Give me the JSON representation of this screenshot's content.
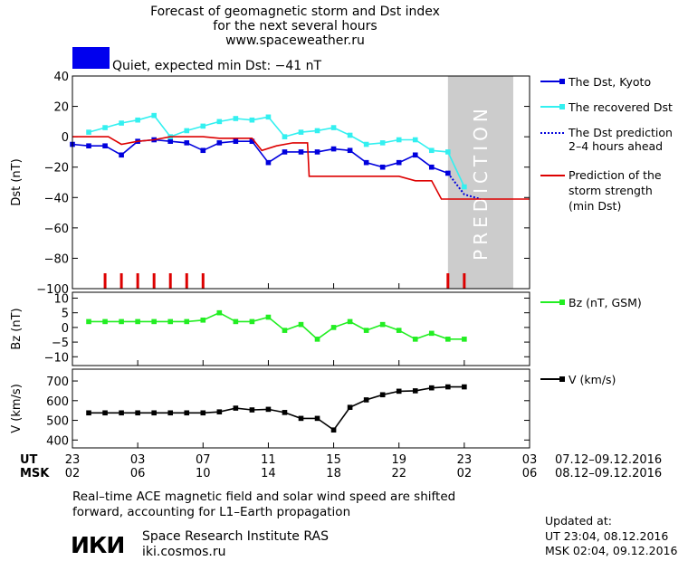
{
  "header": {
    "title_line1": "Forecast of geomagnetic storm and Dst index",
    "title_line2": "for the next several hours",
    "website": "www.spaceweather.ru",
    "status_label": "Quiet, expected min Dst: −41 nT",
    "status_color": "#0000ee"
  },
  "prediction_label": "PREDICTION",
  "colors": {
    "dst_kyoto": "#0000dd",
    "dst_recovered": "#33f0f0",
    "dst_prediction": "#0000dd",
    "min_dst": "#dd0000",
    "bz": "#22ee22",
    "v": "#000000",
    "prediction_zone": "#cccccc",
    "storm_marks": "#dd0000"
  },
  "chart_data": [
    {
      "type": "line",
      "name": "dst",
      "ylabel": "Dst (nT)",
      "ylim": [
        -100,
        40
      ],
      "yticks": [
        40,
        20,
        0,
        -20,
        -40,
        -60,
        -80,
        -100
      ],
      "xlim": [
        0,
        28
      ],
      "prediction_zone": [
        23,
        27
      ],
      "legend": {
        "dst_kyoto": "The Dst, Kyoto",
        "dst_recovered": "The recovered Dst",
        "dst_prediction_1": "The Dst prediction",
        "dst_prediction_2": "2–4 hours ahead",
        "min_dst_1": "Prediction of the",
        "min_dst_2": "storm strength",
        "min_dst_3": "(min Dst)"
      },
      "series": [
        {
          "key": "dst_kyoto",
          "x": [
            0,
            1,
            2,
            3,
            4,
            5,
            6,
            7,
            8,
            9,
            10,
            11,
            12,
            13,
            14,
            15,
            16,
            17,
            18,
            19,
            20,
            21,
            22,
            23
          ],
          "y": [
            -5,
            -6,
            -6,
            -12,
            -3,
            -2,
            -3,
            -4,
            -9,
            -4,
            -3,
            -3,
            -17,
            -10,
            -10,
            -10,
            -8,
            -9,
            -17,
            -20,
            -17,
            -12,
            -20,
            -24
          ]
        },
        {
          "key": "dst_recovered",
          "x": [
            1,
            2,
            3,
            4,
            5,
            6,
            7,
            8,
            9,
            10,
            11,
            12,
            13,
            14,
            15,
            16,
            17,
            18,
            19,
            20,
            21,
            22,
            23,
            24
          ],
          "y": [
            3,
            6,
            9,
            11,
            14,
            0,
            4,
            7,
            10,
            12,
            11,
            13,
            0,
            3,
            4,
            6,
            1,
            -5,
            -4,
            -2,
            -2,
            -9,
            -10,
            -33
          ]
        },
        {
          "key": "dst_prediction",
          "x": [
            23,
            24,
            25
          ],
          "y": [
            -24,
            -38,
            -41
          ]
        },
        {
          "key": "min_dst",
          "x": [
            0,
            2.2,
            3,
            4,
            5,
            6,
            7,
            8,
            9,
            10,
            11,
            11.6,
            12.5,
            13.5,
            14.4,
            14.5,
            20,
            21,
            22,
            22.6,
            28
          ],
          "y": [
            0,
            0,
            -5,
            -3,
            -2,
            0,
            0,
            0,
            -1,
            -1,
            -1,
            -9,
            -6,
            -4,
            -4,
            -26,
            -26,
            -29,
            -29,
            -41,
            -41
          ]
        }
      ],
      "storm_marks_x": [
        2,
        3,
        4,
        5,
        6,
        7,
        8,
        23,
        24
      ]
    },
    {
      "type": "line",
      "name": "bz",
      "ylabel": "Bz (nT)",
      "ylim": [
        -13,
        12
      ],
      "yticks": [
        10,
        5,
        0,
        -5,
        -10
      ],
      "xlim": [
        0,
        28
      ],
      "legend": {
        "bz": "Bz (nT, GSM)"
      },
      "series": [
        {
          "key": "bz",
          "x": [
            1,
            2,
            3,
            4,
            5,
            6,
            7,
            8,
            9,
            10,
            11,
            12,
            13,
            14,
            15,
            16,
            17,
            18,
            19,
            20,
            21,
            22,
            23,
            24
          ],
          "y": [
            2,
            2,
            2,
            2,
            2,
            2,
            2,
            2.5,
            5,
            2,
            2,
            3.5,
            -1,
            1,
            -4,
            0,
            2,
            -1,
            1,
            -1,
            -4,
            -2,
            -4,
            -4
          ]
        }
      ]
    },
    {
      "type": "line",
      "name": "v",
      "ylabel": "V (km/s)",
      "ylim": [
        360,
        760
      ],
      "yticks": [
        700,
        600,
        500,
        400
      ],
      "xlim": [
        0,
        28
      ],
      "legend": {
        "v": "V (km/s)"
      },
      "series": [
        {
          "key": "v",
          "x": [
            1,
            2,
            3,
            4,
            5,
            6,
            7,
            8,
            9,
            10,
            11,
            12,
            13,
            14,
            15,
            16,
            17,
            18,
            19,
            20,
            21,
            22,
            23,
            24
          ],
          "y": [
            538,
            538,
            538,
            538,
            538,
            538,
            538,
            538,
            543,
            562,
            553,
            556,
            540,
            510,
            510,
            451,
            566,
            604,
            630,
            648,
            650,
            665,
            670,
            670
          ]
        }
      ]
    }
  ],
  "x_axis": {
    "ut_label": "UT",
    "msk_label": "MSK",
    "ticks_x": [
      0,
      4,
      8,
      12,
      16,
      20,
      24,
      28
    ],
    "ut_ticks": [
      "23",
      "03",
      "07",
      "11",
      "15",
      "19",
      "23",
      "03"
    ],
    "msk_ticks": [
      "02",
      "06",
      "10",
      "14",
      "18",
      "22",
      "02",
      "06"
    ],
    "ut_dates": "07.12–09.12.2016",
    "msk_dates": "08.12–09.12.2016"
  },
  "footer": {
    "note_line1": "Real–time ACE magnetic field and solar wind speed are shifted",
    "note_line2": "forward, accounting for L1–Earth propagation",
    "logo_text": "ИКИ",
    "institute": "Space Research Institute RAS",
    "institute_url": "iki.cosmos.ru",
    "updated_label": "Updated at:",
    "updated_ut": "UT   23:04, 08.12.2016",
    "updated_msk": "MSK 02:04, 09.12.2016"
  }
}
